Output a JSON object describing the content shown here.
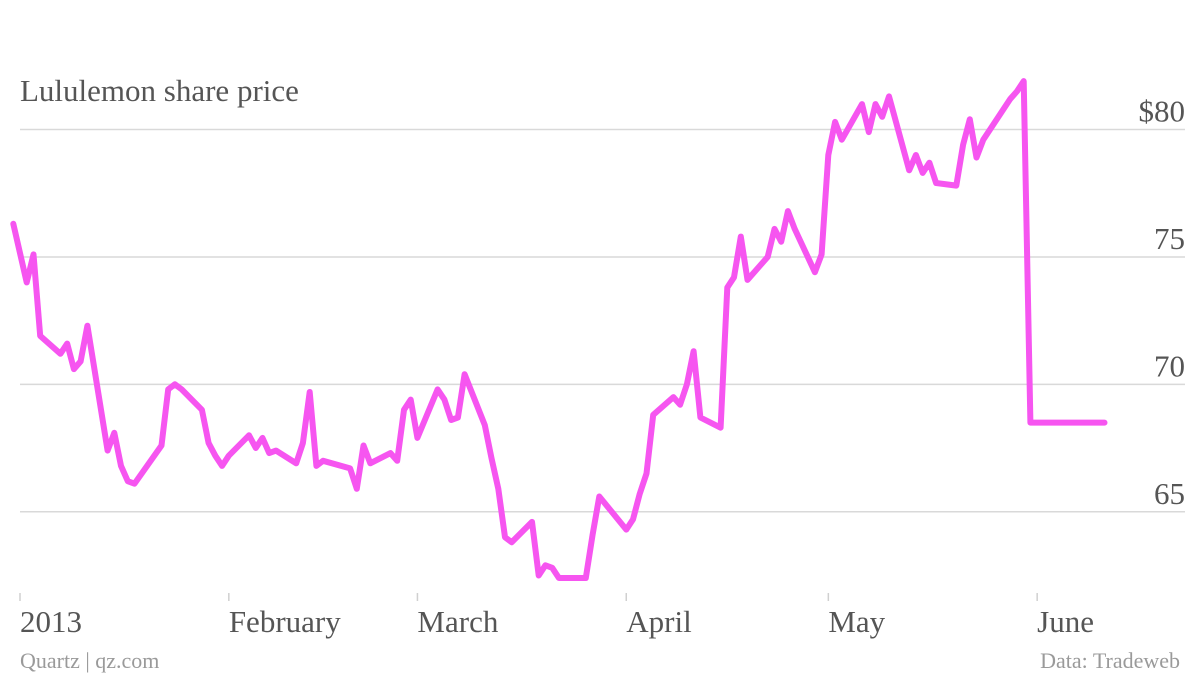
{
  "chart_data": {
    "type": "line",
    "title": "Lululemon share price",
    "xlabel": "",
    "ylabel": "",
    "y_ticks": [
      "65",
      "70",
      "75",
      "$80"
    ],
    "y_tick_values": [
      65,
      70,
      75,
      80
    ],
    "ylim": [
      62.4,
      83.2
    ],
    "x_ticks": [
      {
        "label": "2013",
        "date": "2013-01-01"
      },
      {
        "label": "February",
        "date": "2013-02-01"
      },
      {
        "label": "March",
        "date": "2013-03-01"
      },
      {
        "label": "April",
        "date": "2013-04-01"
      },
      {
        "label": "May",
        "date": "2013-05-01"
      },
      {
        "label": "June",
        "date": "2013-06-01"
      }
    ],
    "xlim": [
      "2013-01-01",
      "2013-06-13"
    ],
    "grid": true,
    "legend": "none",
    "color": "#f655f0",
    "series": [
      {
        "x": [
          "2012-12-31",
          "2013-01-02",
          "2013-01-03",
          "2013-01-04",
          "2013-01-07",
          "2013-01-08",
          "2013-01-09",
          "2013-01-10",
          "2013-01-11",
          "2013-01-14",
          "2013-01-15",
          "2013-01-16",
          "2013-01-17",
          "2013-01-18",
          "2013-01-22",
          "2013-01-23",
          "2013-01-24",
          "2013-01-25",
          "2013-01-28",
          "2013-01-29",
          "2013-01-30",
          "2013-01-31",
          "2013-02-01",
          "2013-02-04",
          "2013-02-05",
          "2013-02-06",
          "2013-02-07",
          "2013-02-08",
          "2013-02-11",
          "2013-02-12",
          "2013-02-13",
          "2013-02-14",
          "2013-02-15",
          "2013-02-19",
          "2013-02-20",
          "2013-02-21",
          "2013-02-22",
          "2013-02-25",
          "2013-02-26",
          "2013-02-27",
          "2013-02-28",
          "2013-03-01",
          "2013-03-04",
          "2013-03-05",
          "2013-03-06",
          "2013-03-07",
          "2013-03-08",
          "2013-03-11",
          "2013-03-12",
          "2013-03-13",
          "2013-03-14",
          "2013-03-15",
          "2013-03-18",
          "2013-03-19",
          "2013-03-20",
          "2013-03-21",
          "2013-03-22",
          "2013-03-25",
          "2013-03-26",
          "2013-03-27",
          "2013-03-28",
          "2013-04-01",
          "2013-04-02",
          "2013-04-03",
          "2013-04-04",
          "2013-04-05",
          "2013-04-08",
          "2013-04-09",
          "2013-04-10",
          "2013-04-11",
          "2013-04-12",
          "2013-04-15",
          "2013-04-16",
          "2013-04-17",
          "2013-04-18",
          "2013-04-19",
          "2013-04-22",
          "2013-04-23",
          "2013-04-24",
          "2013-04-25",
          "2013-04-26",
          "2013-04-29",
          "2013-04-30",
          "2013-05-01",
          "2013-05-02",
          "2013-05-03",
          "2013-05-06",
          "2013-05-07",
          "2013-05-08",
          "2013-05-09",
          "2013-05-10",
          "2013-05-13",
          "2013-05-14",
          "2013-05-15",
          "2013-05-16",
          "2013-05-17",
          "2013-05-20",
          "2013-05-21",
          "2013-05-22",
          "2013-05-23",
          "2013-05-24",
          "2013-05-28",
          "2013-05-29",
          "2013-05-30",
          "2013-05-31",
          "2013-06-03",
          "2013-06-04",
          "2013-06-05",
          "2013-06-06",
          "2013-06-07",
          "2013-06-10",
          "2013-06-11"
        ],
        "values": [
          76.3,
          74.0,
          75.1,
          71.9,
          71.2,
          71.6,
          70.6,
          70.9,
          72.3,
          67.4,
          68.1,
          66.8,
          66.2,
          66.1,
          67.6,
          69.8,
          70.0,
          69.8,
          69.0,
          67.7,
          67.2,
          66.8,
          67.2,
          68.0,
          67.5,
          67.9,
          67.3,
          67.4,
          66.9,
          67.7,
          69.7,
          66.8,
          67.0,
          66.7,
          65.9,
          67.6,
          66.9,
          67.3,
          67.0,
          69.0,
          69.4,
          67.9,
          69.8,
          69.4,
          68.6,
          68.7,
          70.4,
          68.4,
          67.1,
          65.9,
          64.0,
          63.8,
          64.6,
          62.5,
          62.9,
          62.8,
          62.4,
          62.4,
          62.4,
          64.1,
          65.6,
          64.3,
          64.7,
          65.7,
          66.5,
          68.8,
          69.5,
          69.2,
          70.0,
          71.3,
          68.7,
          68.3,
          73.8,
          74.2,
          75.8,
          74.1,
          75.0,
          76.1,
          75.6,
          76.8,
          76.1,
          74.4,
          75.1,
          79.0,
          80.3,
          79.6,
          81.0,
          79.9,
          81.0,
          80.5,
          81.3,
          78.4,
          79.0,
          78.3,
          78.7,
          77.9,
          77.8,
          79.4,
          80.4,
          78.9,
          79.6,
          81.2,
          81.5,
          81.9,
          68.5,
          68.5,
          68.5,
          68.5,
          68.5,
          68.5,
          68.5,
          68.5
        ]
      }
    ],
    "footer_left": "Quartz | qz.com",
    "footer_right": "Data: Tradeweb"
  }
}
